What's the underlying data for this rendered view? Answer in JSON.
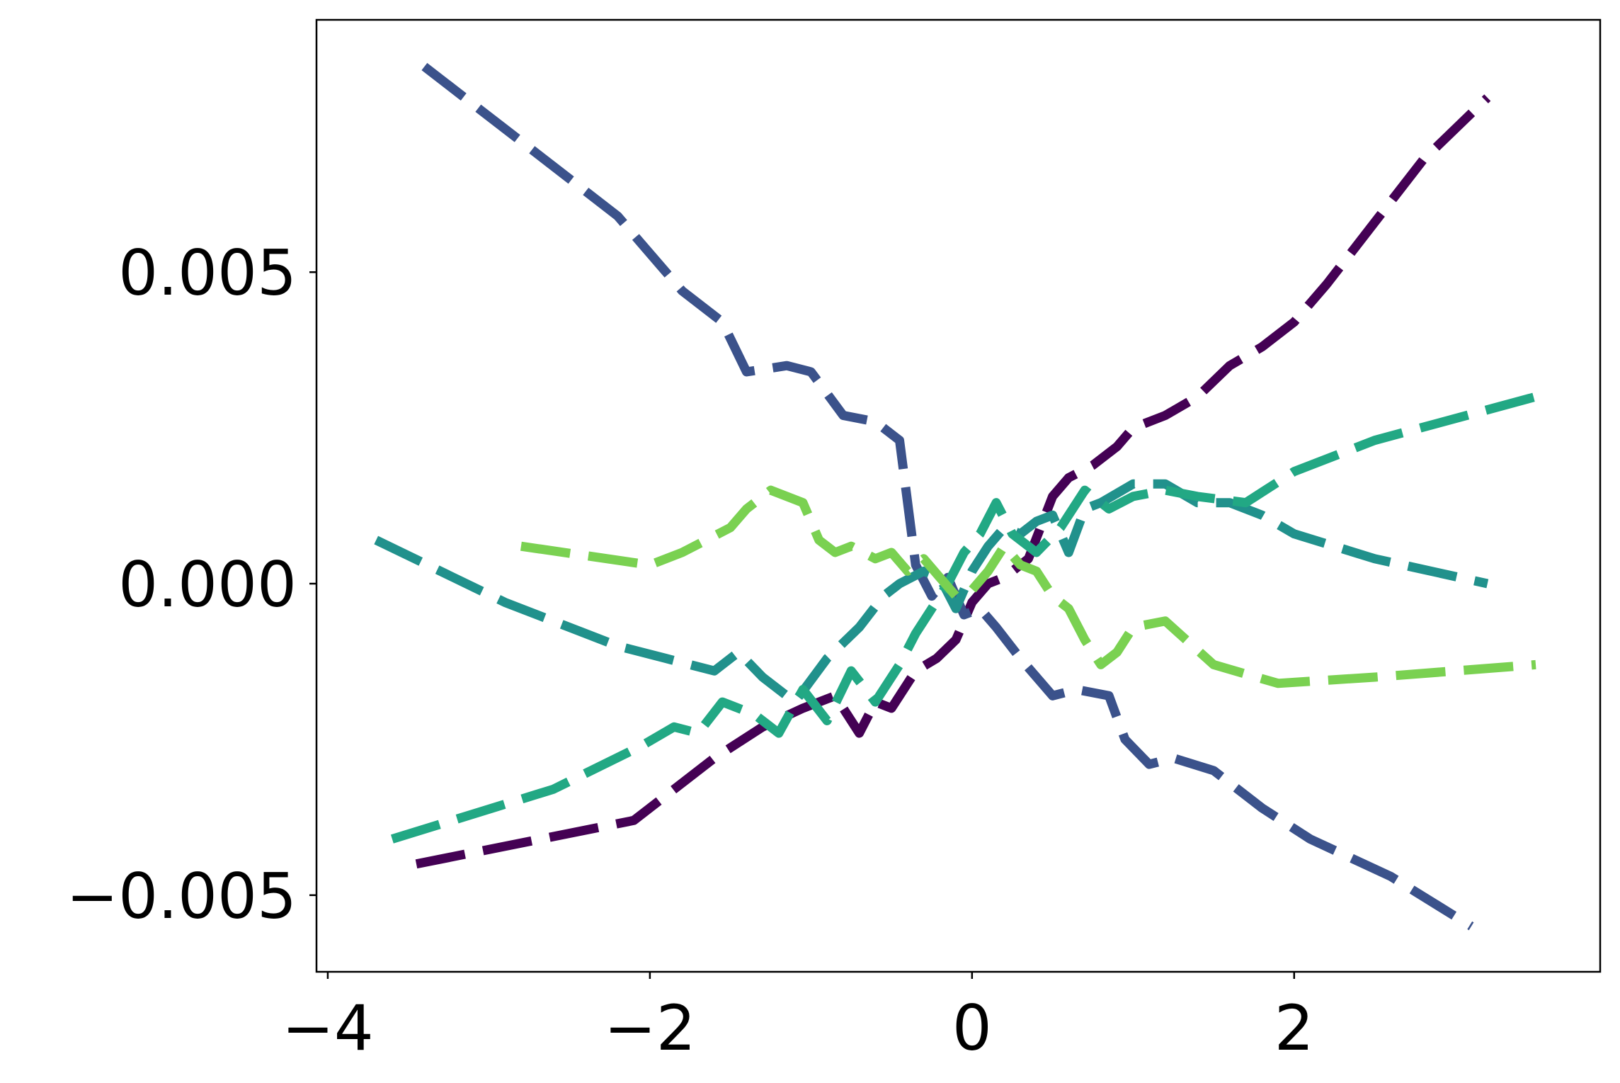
{
  "chart_data": {
    "type": "line",
    "title": "",
    "xlabel": "",
    "ylabel": "",
    "xlim": [
      -4.07,
      3.9
    ],
    "ylim": [
      -0.00623,
      0.00905
    ],
    "x_ticks": [
      {
        "value": -4,
        "label": "−4"
      },
      {
        "value": -2,
        "label": "−2"
      },
      {
        "value": 0,
        "label": "0"
      },
      {
        "value": 2,
        "label": "2"
      }
    ],
    "y_ticks": [
      {
        "value": -0.005,
        "label": "−0.005"
      },
      {
        "value": 0.0,
        "label": "0.000"
      },
      {
        "value": 0.005,
        "label": "0.005"
      }
    ],
    "grid": false,
    "legend": "none",
    "line_style": "dashed",
    "series": [
      {
        "color": "#440154",
        "x": [
          -3.45,
          -2.1,
          -1.6,
          -1.3,
          -1.05,
          -0.85,
          -0.7,
          -0.6,
          -0.5,
          -0.35,
          -0.22,
          -0.1,
          0.0,
          0.1,
          0.2,
          0.35,
          0.5,
          0.6,
          0.75,
          0.9,
          1.0,
          1.2,
          1.4,
          1.6,
          1.8,
          2.0,
          2.2,
          2.5,
          2.8,
          3.2
        ],
        "y": [
          -0.0045,
          -0.0038,
          -0.0028,
          -0.0023,
          -0.002,
          -0.0018,
          -0.0024,
          -0.0019,
          -0.002,
          -0.0014,
          -0.0012,
          -0.0009,
          -0.0003,
          0.0,
          0.0001,
          0.0004,
          0.0014,
          0.0017,
          0.0019,
          0.0022,
          0.0025,
          0.0027,
          0.003,
          0.0035,
          0.0038,
          0.0042,
          0.0048,
          0.0058,
          0.0068,
          0.0078
        ]
      },
      {
        "color": "#3b528b",
        "x": [
          -3.4,
          -2.8,
          -2.2,
          -1.8,
          -1.55,
          -1.4,
          -1.15,
          -1.0,
          -0.8,
          -0.6,
          -0.45,
          -0.35,
          -0.25,
          -0.15,
          -0.05,
          0.05,
          0.15,
          0.3,
          0.5,
          0.65,
          0.85,
          0.95,
          1.1,
          1.25,
          1.5,
          1.8,
          2.1,
          2.6,
          3.1
        ],
        "y": [
          0.0083,
          0.0071,
          0.0059,
          0.0047,
          0.0042,
          0.0034,
          0.0035,
          0.0034,
          0.0027,
          0.0026,
          0.0023,
          0.0003,
          -0.0002,
          0.0001,
          -0.0005,
          -0.0004,
          -0.0007,
          -0.0012,
          -0.0018,
          -0.0017,
          -0.0018,
          -0.0025,
          -0.0029,
          -0.0028,
          -0.003,
          -0.0036,
          -0.0041,
          -0.0047,
          -0.0055
        ]
      },
      {
        "color": "#21918c",
        "x": [
          -3.7,
          -2.9,
          -2.2,
          -1.9,
          -1.6,
          -1.45,
          -1.3,
          -1.1,
          -0.9,
          -0.7,
          -0.55,
          -0.45,
          -0.3,
          -0.2,
          -0.1,
          0.0,
          0.1,
          0.2,
          0.3,
          0.4,
          0.5,
          0.6,
          0.7,
          0.8,
          1.0,
          1.2,
          1.4,
          1.6,
          1.8,
          2.0,
          2.5,
          3.2
        ],
        "y": [
          0.0007,
          -0.0003,
          -0.001,
          -0.0012,
          -0.0014,
          -0.0011,
          -0.0015,
          -0.0019,
          -0.0012,
          -0.0007,
          -0.0002,
          0.0,
          0.0002,
          0.0001,
          -0.0004,
          0.0002,
          0.0006,
          0.0009,
          0.0008,
          0.001,
          0.0011,
          0.0005,
          0.0012,
          0.0013,
          0.0016,
          0.0016,
          0.0013,
          0.0013,
          0.0011,
          0.0008,
          0.0004,
          0.0
        ]
      },
      {
        "color": "#22a884",
        "x": [
          -3.6,
          -2.6,
          -2.05,
          -1.85,
          -1.7,
          -1.55,
          -1.35,
          -1.2,
          -1.05,
          -0.9,
          -0.75,
          -0.6,
          -0.45,
          -0.35,
          -0.25,
          -0.15,
          -0.05,
          0.05,
          0.15,
          0.25,
          0.4,
          0.55,
          0.7,
          0.85,
          1.0,
          1.2,
          1.4,
          1.7,
          2.0,
          2.5,
          3.5
        ],
        "y": [
          -0.0041,
          -0.0033,
          -0.0026,
          -0.0023,
          -0.0024,
          -0.0019,
          -0.0021,
          -0.0024,
          -0.0017,
          -0.0022,
          -0.0014,
          -0.0019,
          -0.0013,
          -0.0008,
          -0.0004,
          0.0,
          0.0005,
          0.0008,
          0.0013,
          0.0008,
          0.0005,
          0.0009,
          0.0015,
          0.0012,
          0.0014,
          0.0015,
          0.0014,
          0.0013,
          0.0018,
          0.0023,
          0.003
        ]
      },
      {
        "color": "#7ad151",
        "x": [
          -2.8,
          -2.0,
          -1.8,
          -1.5,
          -1.4,
          -1.25,
          -1.05,
          -0.95,
          -0.85,
          -0.75,
          -0.6,
          -0.5,
          -0.4,
          -0.3,
          -0.2,
          -0.1,
          0.0,
          0.1,
          0.2,
          0.3,
          0.4,
          0.5,
          0.6,
          0.7,
          0.8,
          0.9,
          1.0,
          1.2,
          1.5,
          1.9,
          2.5,
          3.5
        ],
        "y": [
          0.0006,
          0.0003,
          0.0005,
          0.0009,
          0.0012,
          0.0015,
          0.0013,
          0.0007,
          0.0005,
          0.0006,
          0.0004,
          0.0005,
          0.0002,
          0.0004,
          0.0001,
          -0.0002,
          -0.0001,
          0.0002,
          0.0006,
          0.0003,
          0.0002,
          -0.0002,
          -0.0004,
          -0.0009,
          -0.0013,
          -0.0011,
          -0.0007,
          -0.0006,
          -0.0013,
          -0.0016,
          -0.0015,
          -0.0013
        ]
      }
    ]
  }
}
